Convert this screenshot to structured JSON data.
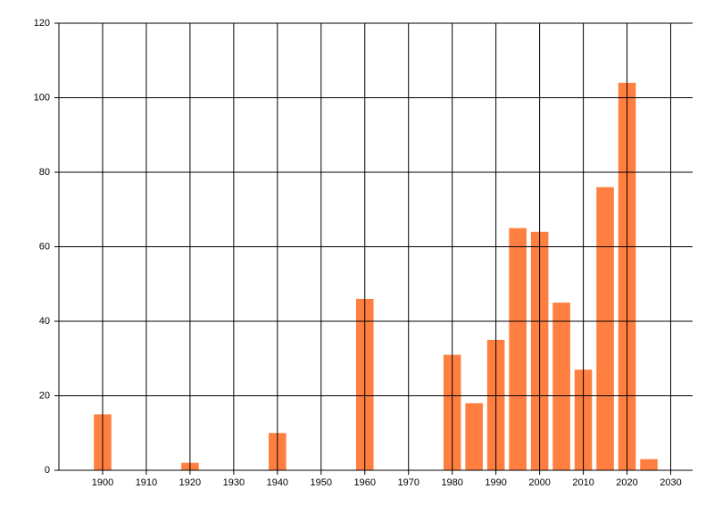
{
  "chart_data": {
    "type": "bar",
    "x": [
      1900,
      1920,
      1940,
      1960,
      1980,
      1985,
      1990,
      1995,
      2000,
      2005,
      2010,
      2015,
      2020,
      2025
    ],
    "values": [
      15,
      2,
      10,
      46,
      31,
      18,
      35,
      65,
      64,
      45,
      27,
      76,
      104,
      3
    ],
    "color": "#ff7f40",
    "xlim": [
      1890,
      2035
    ],
    "xticks": [
      1900,
      1910,
      1920,
      1930,
      1940,
      1950,
      1960,
      1970,
      1980,
      1990,
      2000,
      2010,
      2020,
      2030
    ],
    "ylim": [
      0,
      120
    ],
    "yticks": [
      0,
      20,
      40,
      60,
      80,
      100,
      120
    ],
    "grid": true
  }
}
